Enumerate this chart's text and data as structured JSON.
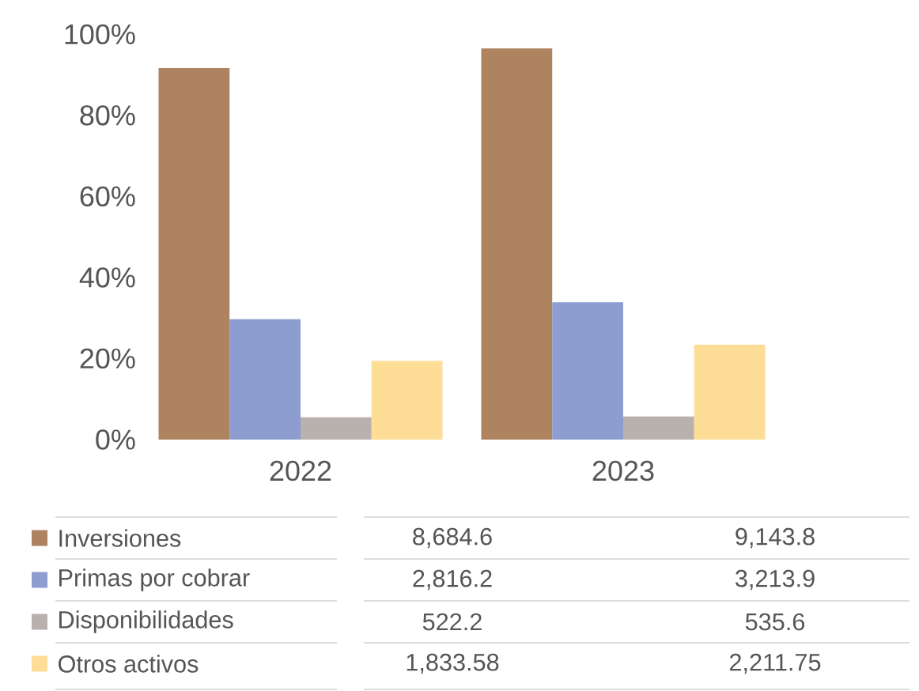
{
  "chart_data": {
    "type": "bar",
    "categories": [
      "2022",
      "2023"
    ],
    "series": [
      {
        "name": "Inversiones",
        "color": "#ae8360",
        "values": [
          91.7,
          96.5
        ]
      },
      {
        "name": "Primas por cobrar",
        "color": "#8e9dcf",
        "values": [
          29.7,
          33.9
        ]
      },
      {
        "name": "Disponibilidades",
        "color": "#b9b1ad",
        "values": [
          5.5,
          5.7
        ]
      },
      {
        "name": "Otros activos",
        "color": "#fedd96",
        "values": [
          19.4,
          23.4
        ]
      }
    ],
    "annotations": [
      "8,684.6",
      "9,143.8",
      "2,816.2",
      "3,213.9",
      "522.2",
      "535.6",
      "1,833.58",
      "2,211.75"
    ],
    "ylim": [
      0,
      100
    ],
    "yticks": [
      {
        "value": 0,
        "label": "0%"
      },
      {
        "value": 20,
        "label": "20%"
      },
      {
        "value": 40,
        "label": "40%"
      },
      {
        "value": 60,
        "label": "60%"
      },
      {
        "value": 80,
        "label": "80%"
      },
      {
        "value": 100,
        "label": "100%"
      }
    ],
    "grid": false,
    "legend": "bottom"
  }
}
